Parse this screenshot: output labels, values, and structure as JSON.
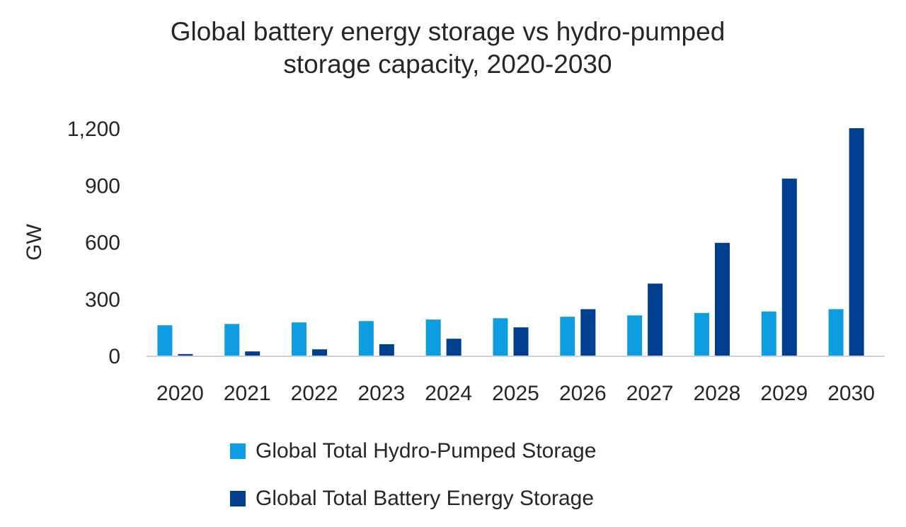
{
  "chart_data": {
    "type": "bar",
    "title": "Global battery energy storage vs hydro-pumped storage capacity, 2020-2030",
    "title_lines": [
      "Global battery energy storage vs hydro-pumped",
      "storage capacity, 2020-2030"
    ],
    "xlabel": "",
    "ylabel": "GW",
    "ylim": [
      0,
      1200
    ],
    "yticks": [
      0,
      300,
      600,
      900,
      1200
    ],
    "ytick_labels": [
      "0",
      "300",
      "600",
      "900",
      "1,200"
    ],
    "grid": false,
    "legend_placement": "bottom",
    "categories": [
      "2020",
      "2021",
      "2022",
      "2023",
      "2024",
      "2025",
      "2026",
      "2027",
      "2028",
      "2029",
      "2030"
    ],
    "series": [
      {
        "name": "Global Total Hydro-Pumped Storage",
        "color": "#0e9de0",
        "values": [
          160,
          167,
          175,
          182,
          190,
          197,
          205,
          212,
          225,
          233,
          245
        ]
      },
      {
        "name": "Global Total Battery Energy Storage",
        "color": "#003f8f",
        "values": [
          8,
          22,
          33,
          60,
          89,
          149,
          245,
          380,
          595,
          934,
          1200
        ]
      }
    ]
  }
}
